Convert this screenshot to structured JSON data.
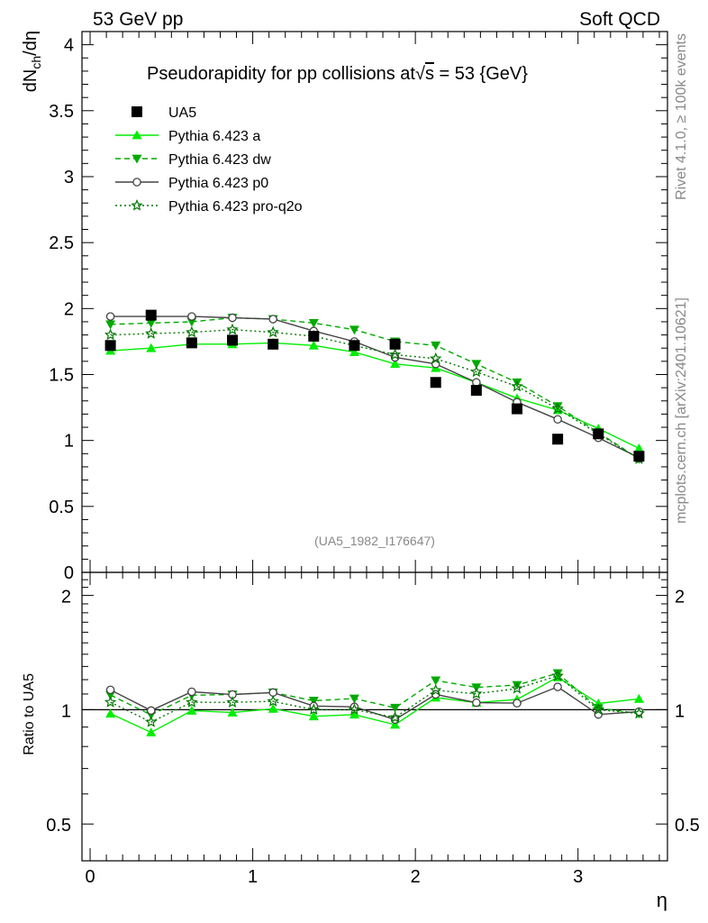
{
  "header": {
    "left": "53 GeV pp",
    "right": "Soft QCD"
  },
  "side": {
    "rivet": "Rivet 4.1.0, ≥ 100k events",
    "mcplots": "mcplots.cern.ch [arXiv:2401.10621]"
  },
  "chart_data": {
    "type": "line",
    "title": "Pseudorapidity for pp collisions at√s = 53 {GeV}",
    "title_parts": {
      "pre": "Pseudorapidity for pp collisions at",
      "root": "√",
      "var": "s",
      "post": " = 53 {GeV}"
    },
    "ylabel": {
      "base": "dN",
      "sub": "ch",
      "tail": "/dη"
    },
    "xlabel": "η",
    "ratio_ylabel": "Ratio to UA5",
    "watermark": "(UA5_1982_I176647)",
    "xlim": [
      -0.05,
      3.55
    ],
    "ylim": [
      0,
      4.1
    ],
    "ratio_ylim": [
      0.4,
      2.3
    ],
    "x_ticks": [
      0,
      1,
      2,
      3
    ],
    "y_ticks": [
      0,
      0.5,
      1,
      1.5,
      2,
      2.5,
      3,
      3.5,
      4
    ],
    "y_tick_labels": [
      "0",
      "0.5",
      "1",
      "1.5",
      "2",
      "2.5",
      "3",
      "3.5",
      "4"
    ],
    "ratio_ticks": [
      0.5,
      1,
      2
    ],
    "ratio_tick_labels": [
      "0.5",
      "1",
      "2"
    ],
    "x": [
      0.125,
      0.375,
      0.625,
      0.875,
      1.125,
      1.375,
      1.625,
      1.875,
      2.125,
      2.375,
      2.625,
      2.875,
      3.125,
      3.375
    ],
    "series": [
      {
        "name": "UA5",
        "legend": "UA5",
        "color": "#000000",
        "marker": "square",
        "line": "none",
        "values": [
          1.72,
          1.95,
          1.74,
          1.76,
          1.73,
          1.79,
          1.72,
          1.73,
          1.44,
          1.38,
          1.24,
          1.01,
          1.05,
          0.88
        ]
      },
      {
        "name": "Pythia 6.423 a",
        "legend": "Pythia 6.423 a",
        "color": "#00ee00",
        "marker": "triangle-up",
        "line": "solid",
        "values": [
          1.68,
          1.7,
          1.73,
          1.73,
          1.74,
          1.72,
          1.67,
          1.58,
          1.55,
          1.44,
          1.32,
          1.23,
          1.09,
          0.94
        ]
      },
      {
        "name": "Pythia 6.423 dw",
        "legend": "Pythia 6.423 dw",
        "color": "#00aa00",
        "marker": "triangle-down",
        "line": "dashed",
        "values": [
          1.88,
          1.89,
          1.9,
          1.93,
          1.92,
          1.89,
          1.84,
          1.75,
          1.72,
          1.58,
          1.44,
          1.26,
          1.06,
          0.86
        ]
      },
      {
        "name": "Pythia 6.423 p0",
        "legend": "Pythia 6.423 p0",
        "color": "#444444",
        "marker": "circle-open",
        "line": "solid",
        "values": [
          1.94,
          1.94,
          1.94,
          1.93,
          1.92,
          1.83,
          1.75,
          1.63,
          1.58,
          1.44,
          1.29,
          1.16,
          1.02,
          0.87
        ]
      },
      {
        "name": "Pythia 6.423 pro-q2o",
        "legend": "Pythia 6.423 pro-q2o",
        "color": "#007700",
        "marker": "star-open",
        "line": "dotted",
        "values": [
          1.8,
          1.81,
          1.82,
          1.84,
          1.82,
          1.79,
          1.72,
          1.65,
          1.62,
          1.52,
          1.41,
          1.24,
          1.05,
          0.86
        ]
      }
    ]
  }
}
